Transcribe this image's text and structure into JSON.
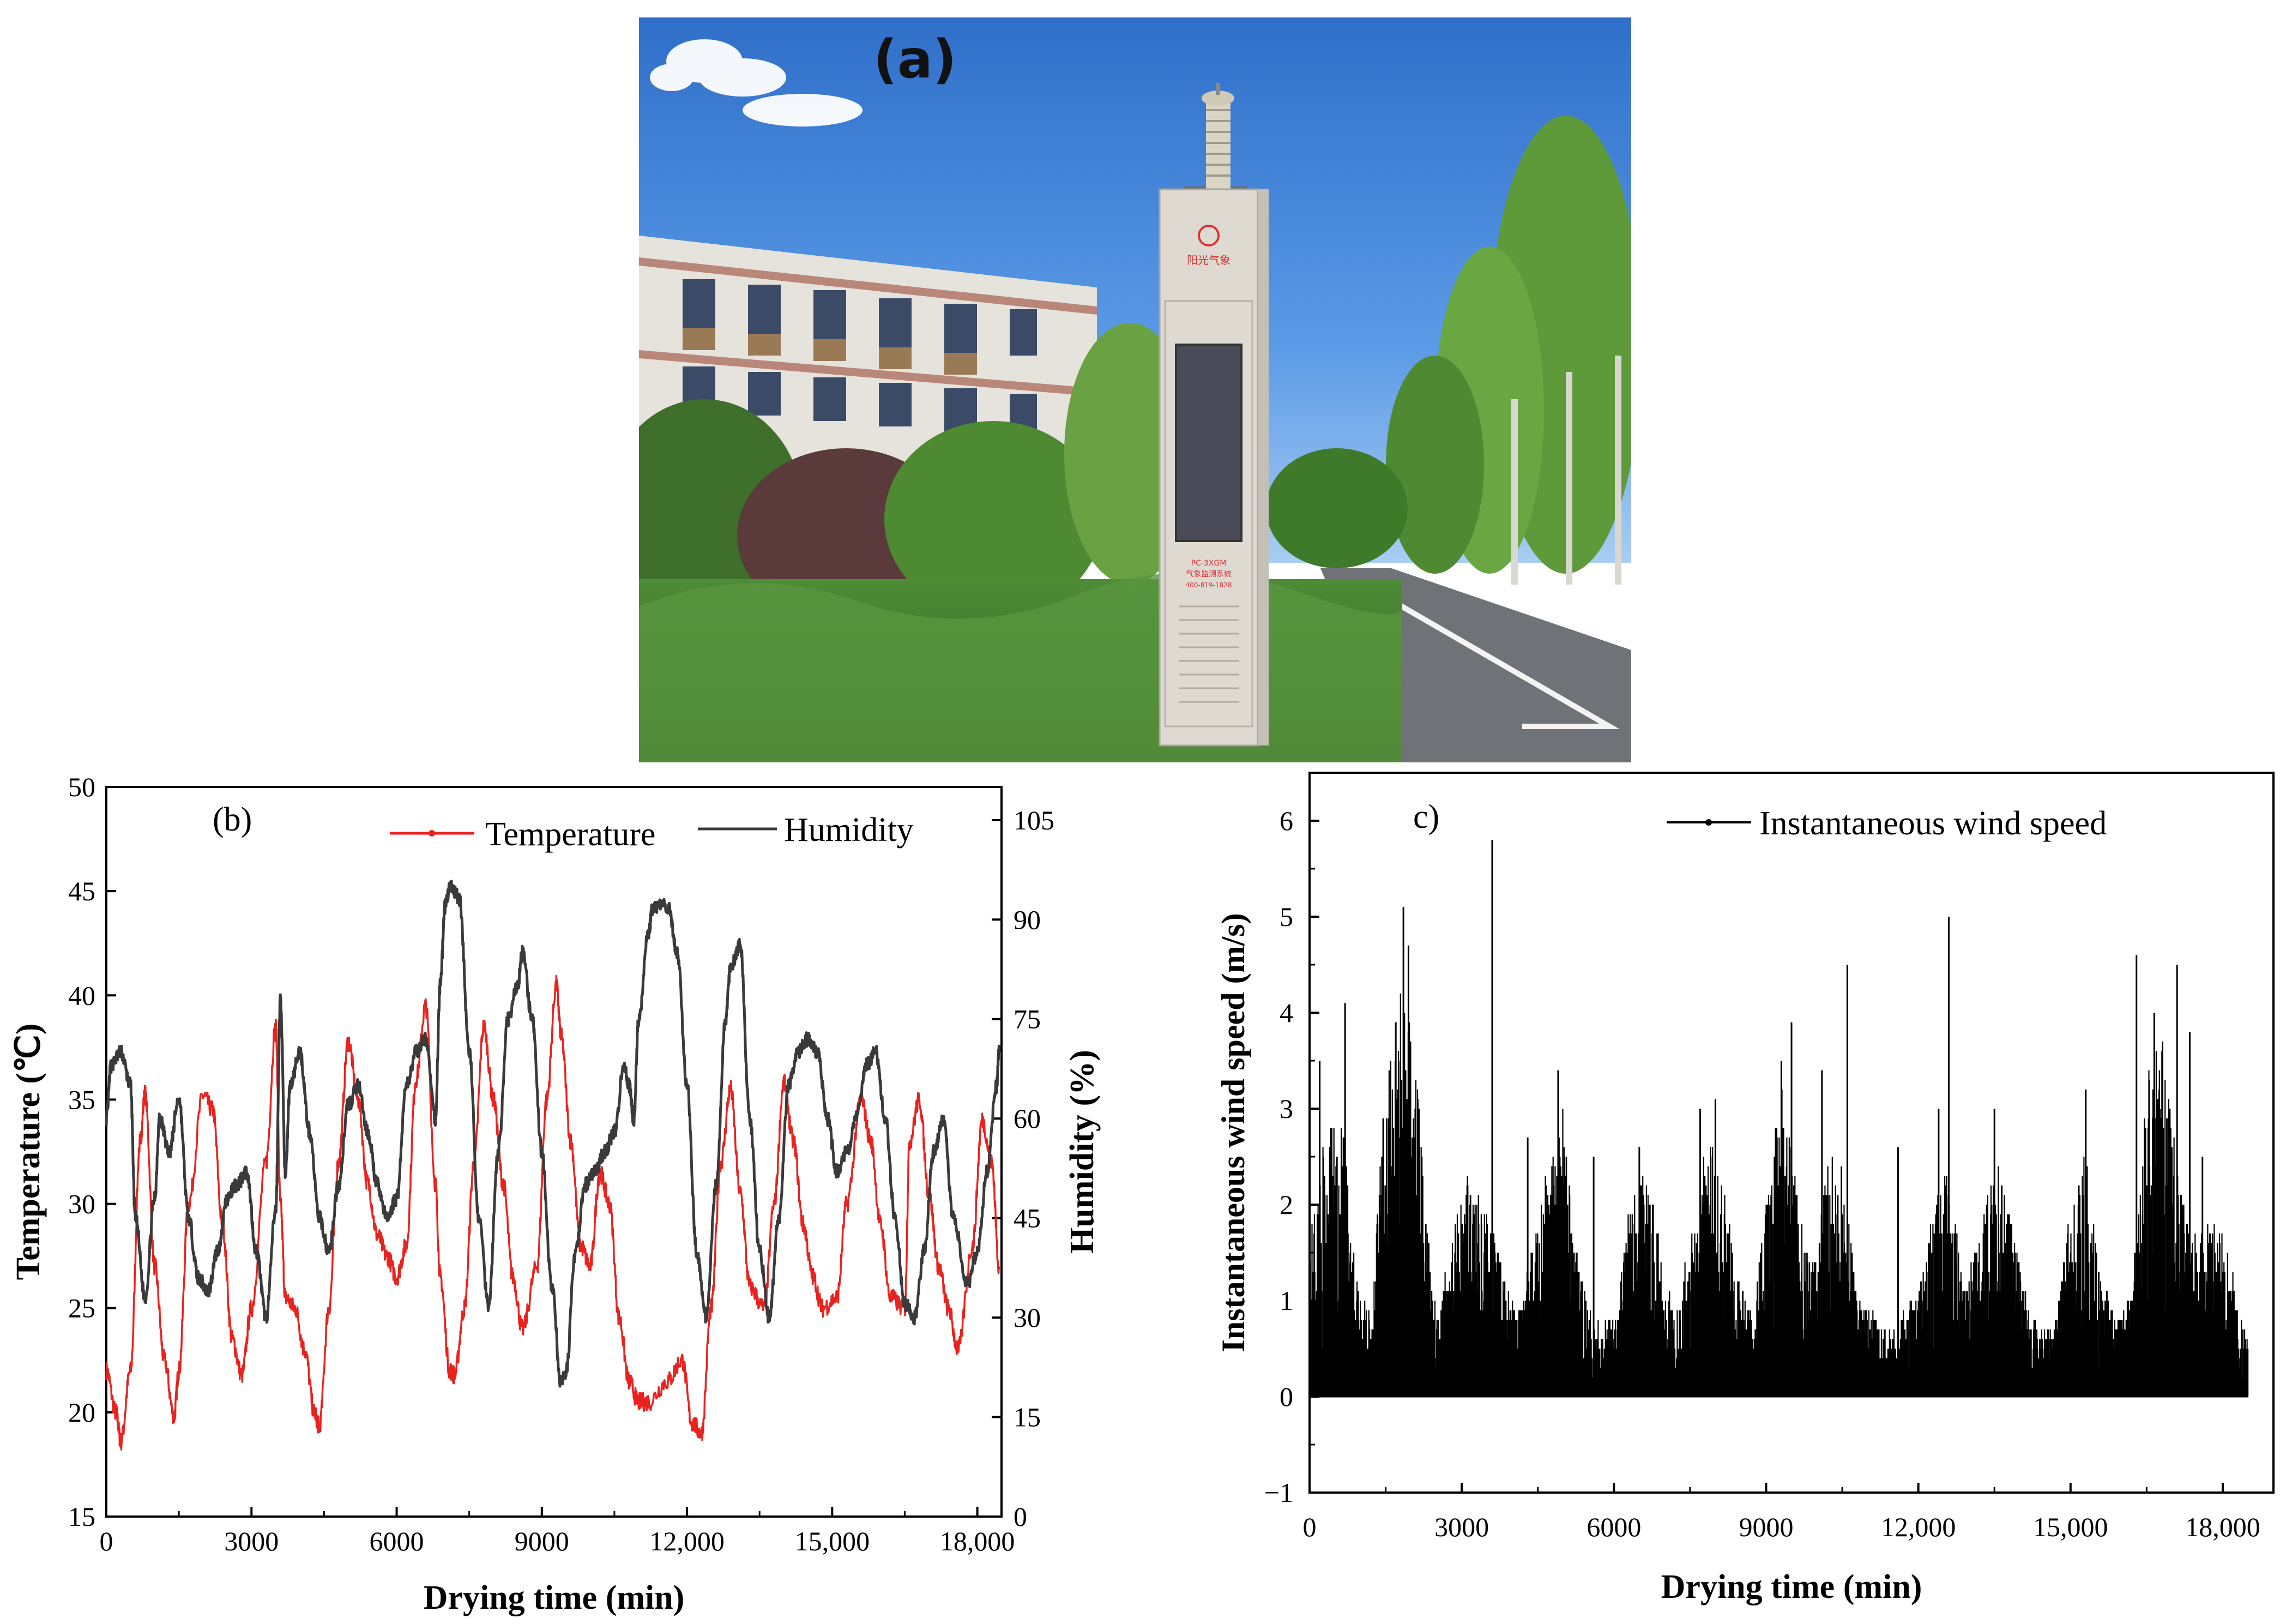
{
  "panel_a": {
    "label": "(a)",
    "sign_brand": "阳光气象",
    "sign_model": "PC-3XGM",
    "sign_system": "气象监测系统",
    "sign_phone": "400-819-1828"
  },
  "colors": {
    "temperature": "#e8231f",
    "humidity": "#3a3a3a",
    "wind": "#000000",
    "sky": "#3f82d6"
  },
  "chart_data": [
    {
      "type": "line",
      "panel_label": "(b)",
      "xlabel": "Drying time (min)",
      "ylabel": "Temperature (℃)",
      "y2label": "Humidity (%)",
      "xlim": [
        0,
        18500
      ],
      "ylim": [
        15,
        50
      ],
      "y2lim": [
        0,
        110
      ],
      "xticks": [
        "0",
        "3000",
        "6000",
        "9000",
        "12,000",
        "15,000",
        "18,000"
      ],
      "yticks": [
        "15",
        "20",
        "25",
        "30",
        "35",
        "40",
        "45",
        "50"
      ],
      "y2ticks": [
        "0",
        "15",
        "30",
        "45",
        "60",
        "75",
        "90",
        "105"
      ],
      "legend": [
        "Temperature",
        "Humidity"
      ],
      "legend_position": "top",
      "series": [
        {
          "name": "Temperature",
          "axis": "left",
          "x": [
            0,
            200,
            300,
            500,
            700,
            800,
            1000,
            1200,
            1400,
            1500,
            1700,
            2000,
            2200,
            2400,
            2600,
            2800,
            3000,
            3300,
            3500,
            3600,
            3700,
            3900,
            4100,
            4300,
            4400,
            4600,
            4800,
            5000,
            5200,
            5400,
            5600,
            5800,
            6000,
            6200,
            6400,
            6600,
            6800,
            6900,
            7100,
            7200,
            7400,
            7600,
            7800,
            8000,
            8200,
            8400,
            8600,
            8900,
            9100,
            9300,
            9400,
            9600,
            9800,
            10000,
            10200,
            10400,
            10600,
            10800,
            11000,
            11200,
            11600,
            11900,
            12100,
            12300,
            12500,
            12700,
            12900,
            13100,
            13300,
            13600,
            13800,
            14000,
            14200,
            14400,
            14600,
            14800,
            15100,
            15300,
            15600,
            15800,
            16000,
            16200,
            16500,
            16600,
            16800,
            17000,
            17200,
            17400,
            17600,
            17900,
            18100,
            18300,
            18450
          ],
          "y": [
            22,
            20,
            18.6,
            22,
            33,
            35.3,
            27,
            22.5,
            19.8,
            22,
            30,
            35.2,
            34.5,
            29,
            23.5,
            21.8,
            25,
            32,
            38.5,
            30,
            25.5,
            25,
            23,
            20,
            19.3,
            25,
            32,
            37.8,
            35,
            31,
            28.5,
            27.5,
            26.5,
            28,
            36,
            39.5,
            31,
            26.5,
            22,
            21.8,
            25,
            32,
            38.5,
            35,
            31,
            26.5,
            24,
            27,
            35,
            40.5,
            38,
            33,
            28,
            27,
            31.5,
            30,
            24.5,
            21.5,
            20.5,
            20.5,
            21.5,
            22.5,
            19.5,
            19,
            25,
            32,
            35.5,
            30.5,
            26,
            25,
            30,
            35.8,
            33,
            29,
            26.5,
            25,
            25.5,
            30,
            35,
            33,
            29,
            25.5,
            25,
            33,
            35,
            30.5,
            27,
            25,
            23,
            28,
            34,
            32,
            27
          ]
        },
        {
          "name": "Humidity",
          "axis": "right",
          "x": [
            0,
            100,
            300,
            500,
            600,
            800,
            1000,
            1100,
            1300,
            1500,
            1700,
            1900,
            2100,
            2300,
            2500,
            2700,
            2900,
            3100,
            3300,
            3500,
            3600,
            3700,
            3800,
            4000,
            4200,
            4400,
            4600,
            4800,
            5000,
            5200,
            5400,
            5600,
            5800,
            6000,
            6200,
            6400,
            6600,
            6800,
            6900,
            7000,
            7100,
            7200,
            7300,
            7500,
            7700,
            7900,
            8100,
            8300,
            8500,
            8600,
            8800,
            9000,
            9200,
            9400,
            9500,
            9700,
            9900,
            10100,
            10300,
            10500,
            10700,
            10800,
            10900,
            11000,
            11200,
            11300,
            11600,
            11800,
            12000,
            12200,
            12400,
            12600,
            12800,
            12900,
            13100,
            13300,
            13500,
            13700,
            13900,
            14100,
            14300,
            14500,
            14700,
            14900,
            15100,
            15300,
            15500,
            15700,
            15900,
            16100,
            16300,
            16500,
            16700,
            16900,
            17100,
            17300,
            17500,
            17800,
            18000,
            18200,
            18400,
            18450
          ],
          "y": [
            60,
            68,
            70,
            65,
            45,
            33,
            48,
            60,
            55,
            63,
            45,
            36,
            34,
            40,
            48,
            50,
            52,
            40,
            30,
            46,
            78,
            52,
            65,
            70,
            58,
            45,
            40,
            50,
            62,
            65,
            58,
            50,
            45,
            48,
            65,
            70,
            72,
            60,
            80,
            92,
            95,
            94,
            93,
            70,
            45,
            32,
            55,
            75,
            80,
            85,
            75,
            55,
            35,
            20,
            22,
            40,
            50,
            52,
            55,
            58,
            68,
            65,
            60,
            75,
            88,
            92,
            92,
            85,
            65,
            40,
            30,
            50,
            75,
            83,
            86,
            60,
            40,
            30,
            45,
            65,
            70,
            72,
            70,
            60,
            52,
            55,
            60,
            68,
            70,
            60,
            45,
            32,
            30,
            40,
            55,
            60,
            45,
            35,
            40,
            52,
            65,
            70
          ]
        }
      ]
    },
    {
      "type": "line",
      "panel_label": "c)",
      "xlabel": "Drying time (min)",
      "ylabel": "Instantaneous wind speed (m/s)",
      "xlim": [
        0,
        19000
      ],
      "ylim": [
        -1,
        6.5
      ],
      "xticks": [
        "0",
        "3000",
        "6000",
        "9000",
        "12,000",
        "15,000",
        "18,000"
      ],
      "yticks": [
        "−1",
        "0",
        "1",
        "2",
        "3",
        "4",
        "5",
        "6"
      ],
      "legend": [
        "Instantaneous wind speed"
      ],
      "legend_position": "top",
      "series": [
        {
          "name": "Instantaneous wind speed",
          "envelope_x": [
            0,
            300,
            700,
            900,
            1200,
            1500,
            1800,
            2000,
            2200,
            2500,
            2800,
            3100,
            3500,
            3800,
            4100,
            4400,
            4700,
            5000,
            5300,
            5600,
            6000,
            6300,
            6600,
            6900,
            7200,
            7500,
            7800,
            8100,
            8400,
            8700,
            9000,
            9300,
            9600,
            9900,
            10200,
            10500,
            10800,
            11100,
            11400,
            11700,
            12000,
            12300,
            12600,
            12900,
            13200,
            13500,
            13800,
            14100,
            14400,
            14700,
            15000,
            15300,
            15600,
            15900,
            16200,
            16500,
            16800,
            17100,
            17400,
            17700,
            18000,
            18300,
            18500
          ],
          "envelope_y": [
            1.5,
            2.5,
            2.6,
            1.2,
            0.8,
            3.0,
            3.9,
            3.6,
            2.5,
            0.8,
            1.5,
            2.2,
            1.8,
            1.2,
            0.8,
            1.5,
            2.3,
            2.7,
            1.2,
            0.7,
            0.8,
            1.8,
            2.2,
            1.5,
            0.8,
            1.5,
            2.4,
            2.3,
            1.2,
            0.8,
            1.8,
            3.0,
            2.0,
            1.2,
            2.3,
            2.2,
            1.0,
            0.8,
            0.6,
            0.8,
            1.0,
            1.8,
            2.2,
            1.0,
            1.6,
            2.3,
            1.8,
            1.0,
            0.6,
            0.8,
            1.8,
            2.3,
            1.2,
            0.7,
            1.0,
            3.0,
            3.5,
            2.2,
            1.5,
            1.8,
            1.5,
            1.0,
            0.5
          ],
          "spikes_x": [
            200,
            400,
            700,
            1700,
            1850,
            1950,
            3600,
            4300,
            4900,
            5600,
            6500,
            7700,
            8000,
            9300,
            9500,
            10100,
            10600,
            11600,
            12400,
            12600,
            13500,
            15300,
            16300,
            16650,
            17100,
            17350,
            17600
          ],
          "spikes_y": [
            3.5,
            2.6,
            4.1,
            3.9,
            5.1,
            4.7,
            5.8,
            2.7,
            3.4,
            2.5,
            2.6,
            3.0,
            3.1,
            3.5,
            3.9,
            3.4,
            4.5,
            2.6,
            3.0,
            5.0,
            3.0,
            3.2,
            4.6,
            4.0,
            4.5,
            3.8,
            2.5
          ]
        }
      ]
    }
  ]
}
